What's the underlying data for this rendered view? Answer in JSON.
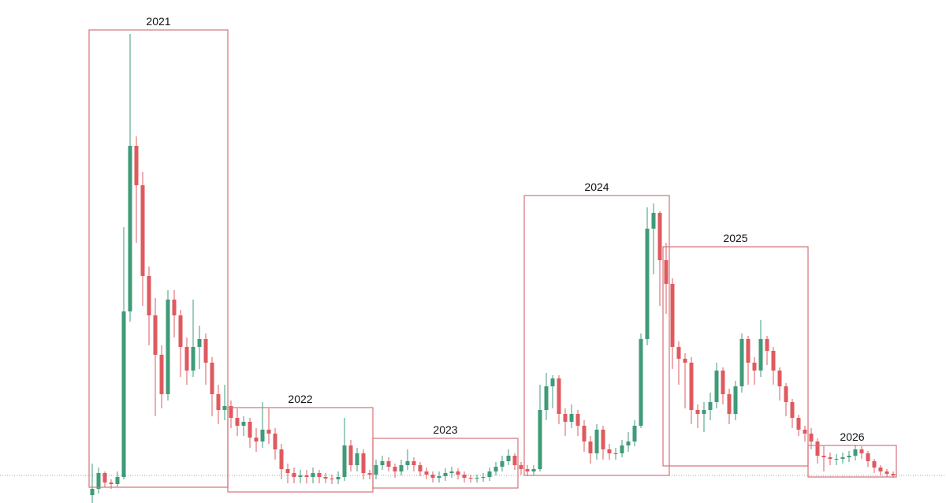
{
  "chart_data": {
    "type": "candlestick",
    "open": [
      10,
      18,
      38,
      26,
      24,
      33,
      243,
      453,
      403,
      288,
      238,
      188,
      138,
      258,
      238,
      198,
      168,
      198,
      208,
      178,
      138,
      118,
      123,
      108,
      98,
      103,
      83,
      78,
      93,
      88,
      68,
      43,
      38,
      33,
      35,
      33,
      38,
      33,
      31,
      30,
      33,
      73,
      48,
      63,
      38,
      36,
      48,
      53,
      46,
      40,
      48,
      53,
      48,
      40,
      36,
      32,
      34,
      38,
      40,
      36,
      32,
      31,
      32,
      33,
      40,
      46,
      53,
      60,
      48,
      43,
      40,
      43,
      118,
      148,
      158,
      113,
      103,
      113,
      98,
      78,
      63,
      93,
      68,
      63,
      63,
      73,
      78,
      98,
      208,
      348,
      368,
      308,
      278,
      198,
      183,
      178,
      118,
      113,
      118,
      128,
      168,
      138,
      113,
      148,
      208,
      178,
      168,
      208,
      193,
      168,
      148,
      128,
      108,
      93,
      88,
      78,
      60,
      58,
      56,
      56,
      58,
      60,
      68,
      63,
      53,
      45,
      40,
      37
    ],
    "high": [
      50,
      45,
      40,
      30,
      40,
      350,
      595,
      465,
      420,
      300,
      260,
      200,
      270,
      270,
      245,
      210,
      258,
      225,
      215,
      185,
      150,
      150,
      130,
      120,
      110,
      108,
      95,
      128,
      120,
      95,
      75,
      50,
      45,
      42,
      42,
      45,
      42,
      38,
      36,
      40,
      108,
      80,
      70,
      68,
      42,
      55,
      60,
      58,
      50,
      55,
      68,
      58,
      52,
      45,
      40,
      40,
      44,
      46,
      44,
      40,
      36,
      36,
      38,
      45,
      52,
      60,
      68,
      63,
      52,
      48,
      48,
      150,
      165,
      162,
      162,
      120,
      125,
      118,
      105,
      85,
      100,
      98,
      75,
      70,
      80,
      90,
      105,
      215,
      375,
      380,
      370,
      330,
      285,
      205,
      190,
      185,
      125,
      128,
      140,
      178,
      172,
      145,
      155,
      215,
      212,
      185,
      232,
      212,
      198,
      172,
      152,
      132,
      112,
      98,
      95,
      82,
      72,
      64,
      62,
      64,
      66,
      74,
      72,
      66,
      56,
      48,
      43,
      40
    ],
    "low": [
      0,
      12,
      20,
      18,
      20,
      30,
      230,
      330,
      250,
      200,
      110,
      120,
      130,
      210,
      160,
      150,
      160,
      170,
      150,
      110,
      100,
      105,
      95,
      85,
      85,
      70,
      65,
      70,
      75,
      55,
      30,
      25,
      25,
      25,
      25,
      25,
      25,
      25,
      24,
      24,
      28,
      40,
      40,
      30,
      30,
      30,
      42,
      40,
      32,
      35,
      42,
      40,
      34,
      30,
      26,
      26,
      28,
      32,
      30,
      26,
      26,
      26,
      27,
      28,
      35,
      40,
      48,
      42,
      36,
      34,
      35,
      40,
      105,
      120,
      100,
      85,
      95,
      85,
      65,
      50,
      55,
      55,
      55,
      55,
      58,
      65,
      72,
      95,
      200,
      290,
      250,
      240,
      170,
      150,
      120,
      100,
      95,
      90,
      105,
      120,
      125,
      100,
      105,
      140,
      150,
      150,
      160,
      175,
      150,
      130,
      110,
      95,
      85,
      78,
      68,
      50,
      40,
      48,
      48,
      50,
      52,
      54,
      56,
      46,
      38,
      35,
      33,
      32
    ],
    "close": [
      18,
      38,
      26,
      24,
      33,
      243,
      453,
      403,
      288,
      238,
      188,
      138,
      258,
      238,
      198,
      168,
      198,
      208,
      178,
      138,
      118,
      123,
      108,
      98,
      103,
      83,
      78,
      93,
      88,
      68,
      43,
      38,
      33,
      35,
      33,
      38,
      33,
      31,
      30,
      33,
      73,
      48,
      63,
      38,
      36,
      48,
      53,
      46,
      40,
      48,
      53,
      48,
      40,
      36,
      32,
      34,
      38,
      40,
      36,
      32,
      31,
      32,
      33,
      40,
      46,
      53,
      60,
      48,
      43,
      40,
      43,
      118,
      148,
      158,
      113,
      103,
      113,
      98,
      78,
      63,
      93,
      68,
      63,
      63,
      73,
      78,
      98,
      208,
      348,
      368,
      308,
      278,
      198,
      183,
      178,
      118,
      113,
      118,
      128,
      168,
      138,
      113,
      148,
      208,
      178,
      168,
      208,
      193,
      168,
      148,
      128,
      108,
      93,
      88,
      78,
      60,
      58,
      56,
      56,
      58,
      60,
      68,
      63,
      53,
      45,
      40,
      37,
      35
    ],
    "ylim": [
      0,
      638
    ],
    "up_color": "#3f9b78",
    "down_color": "#de5a5f",
    "region_color": "#d4737a",
    "reference_line": 35,
    "regions": [
      {
        "label": "2021",
        "first": 0,
        "last": 21,
        "low": 20,
        "high": 600
      },
      {
        "label": "2022",
        "first": 22,
        "last": 44,
        "low": 14,
        "high": 121
      },
      {
        "label": "2023",
        "first": 45,
        "last": 67,
        "low": 19,
        "high": 82
      },
      {
        "label": "2024",
        "first": 69,
        "last": 91,
        "low": 35,
        "high": 390
      },
      {
        "label": "2025",
        "first": 91,
        "last": 113,
        "low": 47,
        "high": 325
      },
      {
        "label": "2026",
        "first": 114,
        "last": 127,
        "low": 33,
        "high": 73
      }
    ]
  }
}
